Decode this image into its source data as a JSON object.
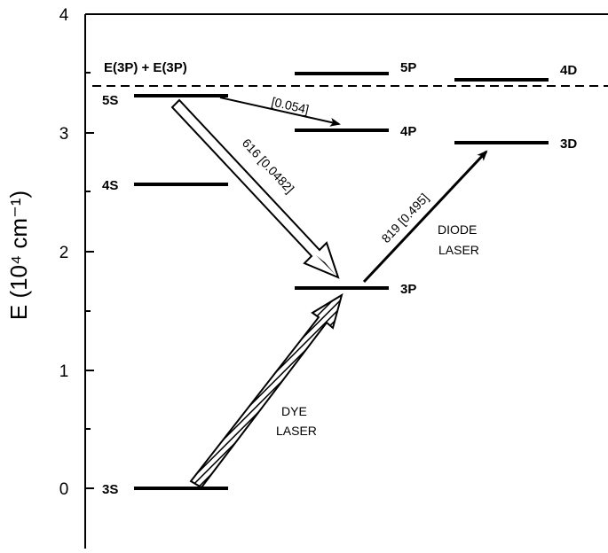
{
  "axis": {
    "title": "E (10⁴ cm⁻¹)",
    "ticks": [
      "0",
      "1",
      "2",
      "3",
      "4"
    ]
  },
  "levels": {
    "s3": "3S",
    "s4": "4S",
    "s5": "5S",
    "p3": "3P",
    "p4": "4P",
    "p5": "5P",
    "d3": "3D",
    "d4": "4D"
  },
  "threshold_label": "E(3P) + E(3P)",
  "transitions": {
    "t616": "616  [0.0482]",
    "t819": "819  [0.495]",
    "t054": "[0.054]"
  },
  "lasers": {
    "dye_line1": "DYE",
    "dye_line2": "LASER",
    "diode_line1": "DIODE",
    "diode_line2": "LASER"
  }
}
